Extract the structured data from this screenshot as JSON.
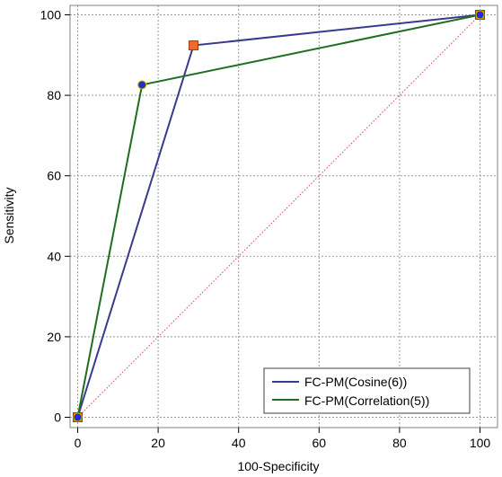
{
  "chart_data": {
    "type": "line",
    "title": "",
    "xlabel": "100-Specificity",
    "ylabel": "Sensitivity",
    "xlim": [
      0,
      100
    ],
    "ylim": [
      0,
      100
    ],
    "xticks": [
      0,
      20,
      40,
      60,
      80,
      100
    ],
    "yticks": [
      0,
      20,
      40,
      60,
      80,
      100
    ],
    "grid": true,
    "legend_position": "bottom-right",
    "reference_line": {
      "x": [
        0,
        100
      ],
      "y": [
        0,
        100
      ],
      "color": "#c05050",
      "style": "dotted"
    },
    "series": [
      {
        "name": "FC-PM(Cosine(6))",
        "color": "#3a3a8c",
        "marker": "square",
        "marker_fill": "#f06a2a",
        "x": [
          0,
          28.8,
          100
        ],
        "y": [
          0,
          92.4,
          100
        ]
      },
      {
        "name": "FC-PM(Correlation(5))",
        "color": "#1f6e1f",
        "marker": "circle",
        "marker_fill": "#1d2fd6",
        "x": [
          0,
          16.0,
          100
        ],
        "y": [
          0,
          82.6,
          100
        ]
      }
    ]
  }
}
